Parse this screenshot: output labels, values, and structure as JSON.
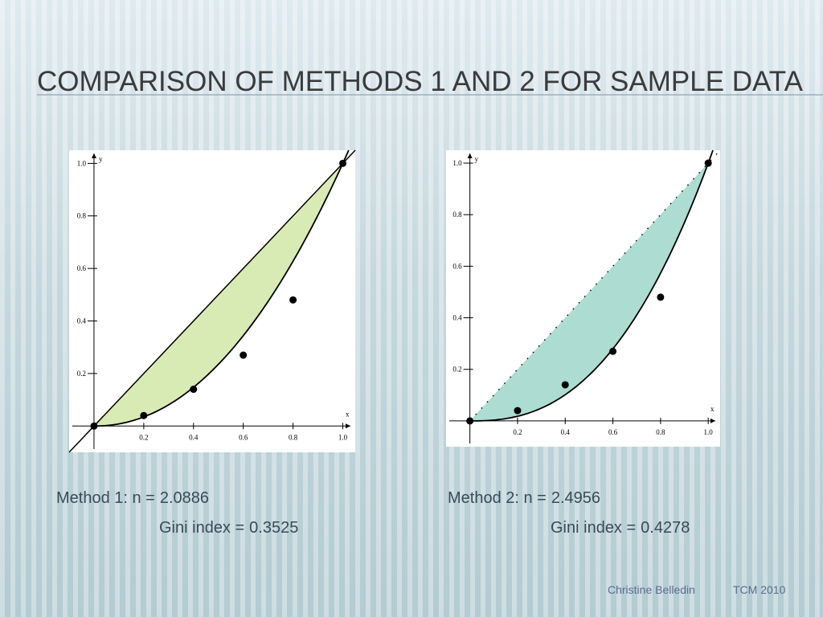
{
  "slide": {
    "title": "Comparison of Methods 1 and 2 for Sample Data",
    "footer_author": "Christine Belledin",
    "footer_event": "TCM 2010"
  },
  "chart_data": [
    {
      "type": "scatter",
      "x_label": "x",
      "y_label": "y",
      "x": [
        0,
        0.2,
        0.4,
        0.6,
        0.8,
        1.0
      ],
      "values": [
        0,
        0.04,
        0.14,
        0.27,
        0.48,
        1.0
      ],
      "xlim": [
        -0.1,
        1.05
      ],
      "ylim": [
        -0.1,
        1.05
      ],
      "xticks": [
        0.2,
        0.4,
        0.6,
        0.8,
        {
          "value": 1,
          "label": "1.0"
        }
      ],
      "yticks": [
        0.2,
        0.4,
        0.6,
        0.8,
        {
          "value": 1,
          "label": "1.0"
        }
      ],
      "fill_color": "#d9ebb5",
      "diagonal_style": "solid",
      "method_label": "Method 1:  n =",
      "n": 2.0886,
      "gini_label": "Gini index =",
      "gini": 0.3525
    },
    {
      "type": "scatter",
      "x_label": "x",
      "y_label": "y",
      "x": [
        0,
        0.2,
        0.4,
        0.6,
        0.8,
        1.0
      ],
      "values": [
        0,
        0.04,
        0.14,
        0.27,
        0.48,
        1.0
      ],
      "xlim": [
        -0.1,
        1.05
      ],
      "ylim": [
        -0.1,
        1.05
      ],
      "xticks": [
        0.2,
        0.4,
        0.6,
        0.8,
        {
          "value": 1,
          "label": "1.0"
        }
      ],
      "yticks": [
        0.2,
        0.4,
        0.6,
        0.8,
        {
          "value": 1,
          "label": "1.0"
        }
      ],
      "fill_color": "#acdcd2",
      "diagonal_style": "dotted",
      "method_label": "Method 2:  n =",
      "n": 2.4956,
      "gini_label": "Gini index =",
      "gini": 0.4278
    }
  ]
}
